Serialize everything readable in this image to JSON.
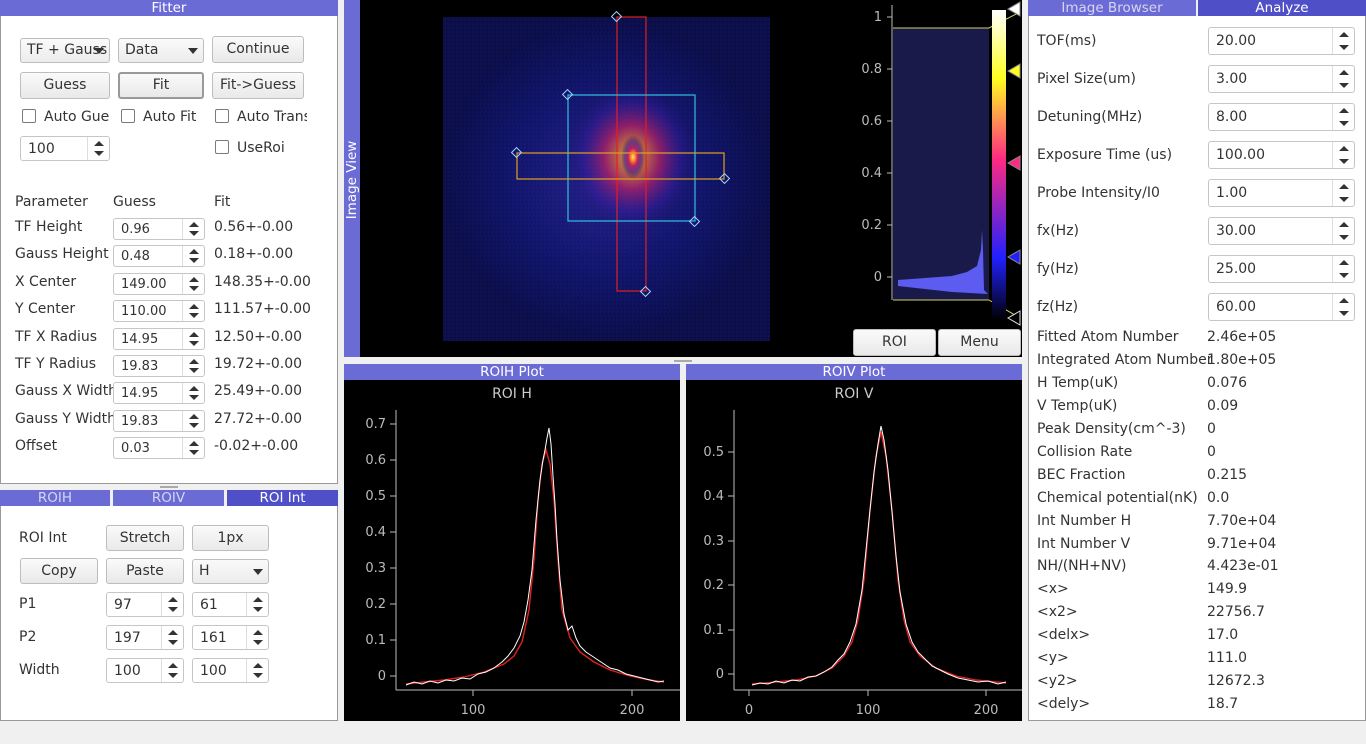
{
  "fitter": {
    "title": "Fitter",
    "model_combo": "TF + Gauss",
    "source_combo": "Data",
    "continue": "Continue",
    "guess": "Guess",
    "fit": "Fit",
    "fit_to_guess": "Fit->Guess",
    "auto_guess": "Auto Guess",
    "auto_fit": "Auto Fit",
    "auto_trans": "Auto Trans",
    "use_roi": "UseRoi",
    "iterations": "100",
    "headers": {
      "parameter": "Parameter",
      "guess": "Guess",
      "fit": "Fit"
    },
    "params": [
      {
        "name": "TF Height",
        "guess": "0.96",
        "fit": "0.56+-0.00"
      },
      {
        "name": "Gauss Height",
        "guess": "0.48",
        "fit": "0.18+-0.00"
      },
      {
        "name": "X Center",
        "guess": "149.00",
        "fit": "148.35+-0.00"
      },
      {
        "name": "Y Center",
        "guess": "110.00",
        "fit": "111.57+-0.00"
      },
      {
        "name": "TF X Radius",
        "guess": "14.95",
        "fit": "12.50+-0.00"
      },
      {
        "name": "TF Y Radius",
        "guess": "19.83",
        "fit": "19.72+-0.00"
      },
      {
        "name": "Gauss X Width",
        "guess": "14.95",
        "fit": "25.49+-0.00"
      },
      {
        "name": "Gauss Y Width",
        "guess": "19.83",
        "fit": "27.72+-0.00"
      },
      {
        "name": "Offset",
        "guess": "0.03",
        "fit": "-0.02+-0.00"
      }
    ]
  },
  "roi_tabs": [
    "ROIH",
    "ROIV",
    "ROI Int"
  ],
  "roi_int": {
    "label": "ROI Int",
    "stretch": "Stretch",
    "px": "1px",
    "copy": "Copy",
    "paste": "Paste",
    "dir": "H",
    "rows": [
      {
        "name": "P1",
        "a": "97",
        "b": "61"
      },
      {
        "name": "P2",
        "a": "197",
        "b": "161"
      },
      {
        "name": "Width",
        "a": "100",
        "b": "100"
      }
    ]
  },
  "image_view": {
    "side_label": "Image View",
    "roi_button": "ROI",
    "menu_button": "Menu",
    "hist_ticks": [
      "1",
      "0.8",
      "0.6",
      "0.4",
      "0.2",
      "0"
    ]
  },
  "roih_plot": {
    "panel_title": "ROIH Plot",
    "plot_title": "ROI H",
    "y_ticks": [
      "0.7",
      "0.6",
      "0.5",
      "0.4",
      "0.3",
      "0.2",
      "0.1",
      "0"
    ],
    "x_ticks": [
      "100",
      "200"
    ]
  },
  "roiv_plot": {
    "panel_title": "ROIV Plot",
    "plot_title": "ROI V",
    "y_ticks": [
      "0.5",
      "0.4",
      "0.3",
      "0.2",
      "0.1",
      "0"
    ],
    "x_ticks": [
      "0",
      "100",
      "200"
    ]
  },
  "right_tabs": [
    "Image Browser",
    "Analyze"
  ],
  "analyze": {
    "inputs": [
      {
        "label": "TOF(ms)",
        "value": "20.00"
      },
      {
        "label": "Pixel Size(um)",
        "value": "3.00"
      },
      {
        "label": "Detuning(MHz)",
        "value": "8.00"
      },
      {
        "label": "Exposure Time (us)",
        "value": "100.00"
      },
      {
        "label": "Probe Intensity/I0",
        "value": "1.00"
      },
      {
        "label": "fx(Hz)",
        "value": "30.00"
      },
      {
        "label": "fy(Hz)",
        "value": "25.00"
      },
      {
        "label": "fz(Hz)",
        "value": "60.00"
      }
    ],
    "results": [
      {
        "label": "Fitted Atom Number",
        "value": "2.46e+05"
      },
      {
        "label": "Integrated Atom Number",
        "value": "1.80e+05"
      },
      {
        "label": "H Temp(uK)",
        "value": "0.076"
      },
      {
        "label": "V Temp(uK)",
        "value": "0.09"
      },
      {
        "label": "Peak Density(cm^-3)",
        "value": "0"
      },
      {
        "label": "Collision Rate",
        "value": "0"
      },
      {
        "label": "BEC Fraction",
        "value": "0.215"
      },
      {
        "label": "Chemical potential(nK)",
        "value": "0.0"
      },
      {
        "label": "Int Number H",
        "value": "7.70e+04"
      },
      {
        "label": "Int Number V",
        "value": "9.71e+04"
      },
      {
        "label": "NH/(NH+NV)",
        "value": "4.423e-01"
      },
      {
        "label": "<x>",
        "value": "149.9"
      },
      {
        "label": "<x2>",
        "value": "22756.7"
      },
      {
        "label": "<delx>",
        "value": "17.0"
      },
      {
        "label": "<y>",
        "value": "111.0"
      },
      {
        "label": "<y2>",
        "value": "12672.3"
      },
      {
        "label": "<dely>",
        "value": "18.7"
      }
    ]
  },
  "colors": {
    "panel_header": "#6b6bd6",
    "roi_h": "#e0a020",
    "roi_v": "#e02020",
    "roi_main": "#30c0e0",
    "fit_line": "#e02020"
  }
}
